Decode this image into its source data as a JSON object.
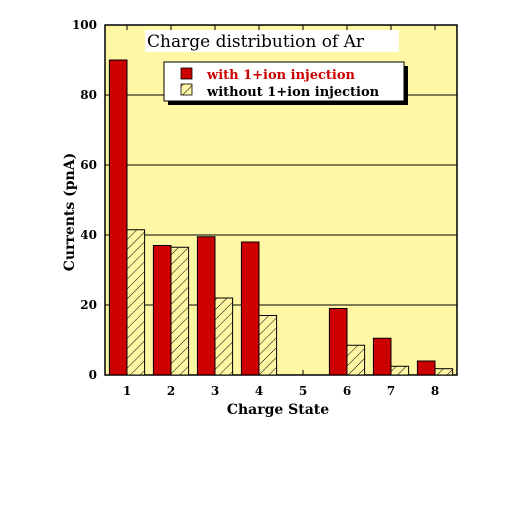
{
  "chart_data": {
    "type": "bar",
    "title": "Charge distribution of Ar",
    "xlabel": "Charge State",
    "ylabel": "Currents (pnA)",
    "categories": [
      "1",
      "2",
      "3",
      "4",
      "5",
      "6",
      "7",
      "8"
    ],
    "ylim": [
      0,
      100
    ],
    "yticks": [
      "0",
      "20",
      "40",
      "60",
      "80",
      "100"
    ],
    "grid": true,
    "legend_position": "top-center",
    "background_color": "#fff7a3",
    "series": [
      {
        "name": "with 1+ion injection",
        "color": "#cc0000",
        "pattern": "solid",
        "values": [
          90,
          37,
          39.5,
          38,
          0,
          19,
          10.5,
          4
        ]
      },
      {
        "name": "without 1+ion injection",
        "color": "#fff7a3",
        "pattern": "hatched",
        "values": [
          41.5,
          36.5,
          22,
          17,
          0,
          8.5,
          2.5,
          1.8
        ]
      }
    ]
  }
}
